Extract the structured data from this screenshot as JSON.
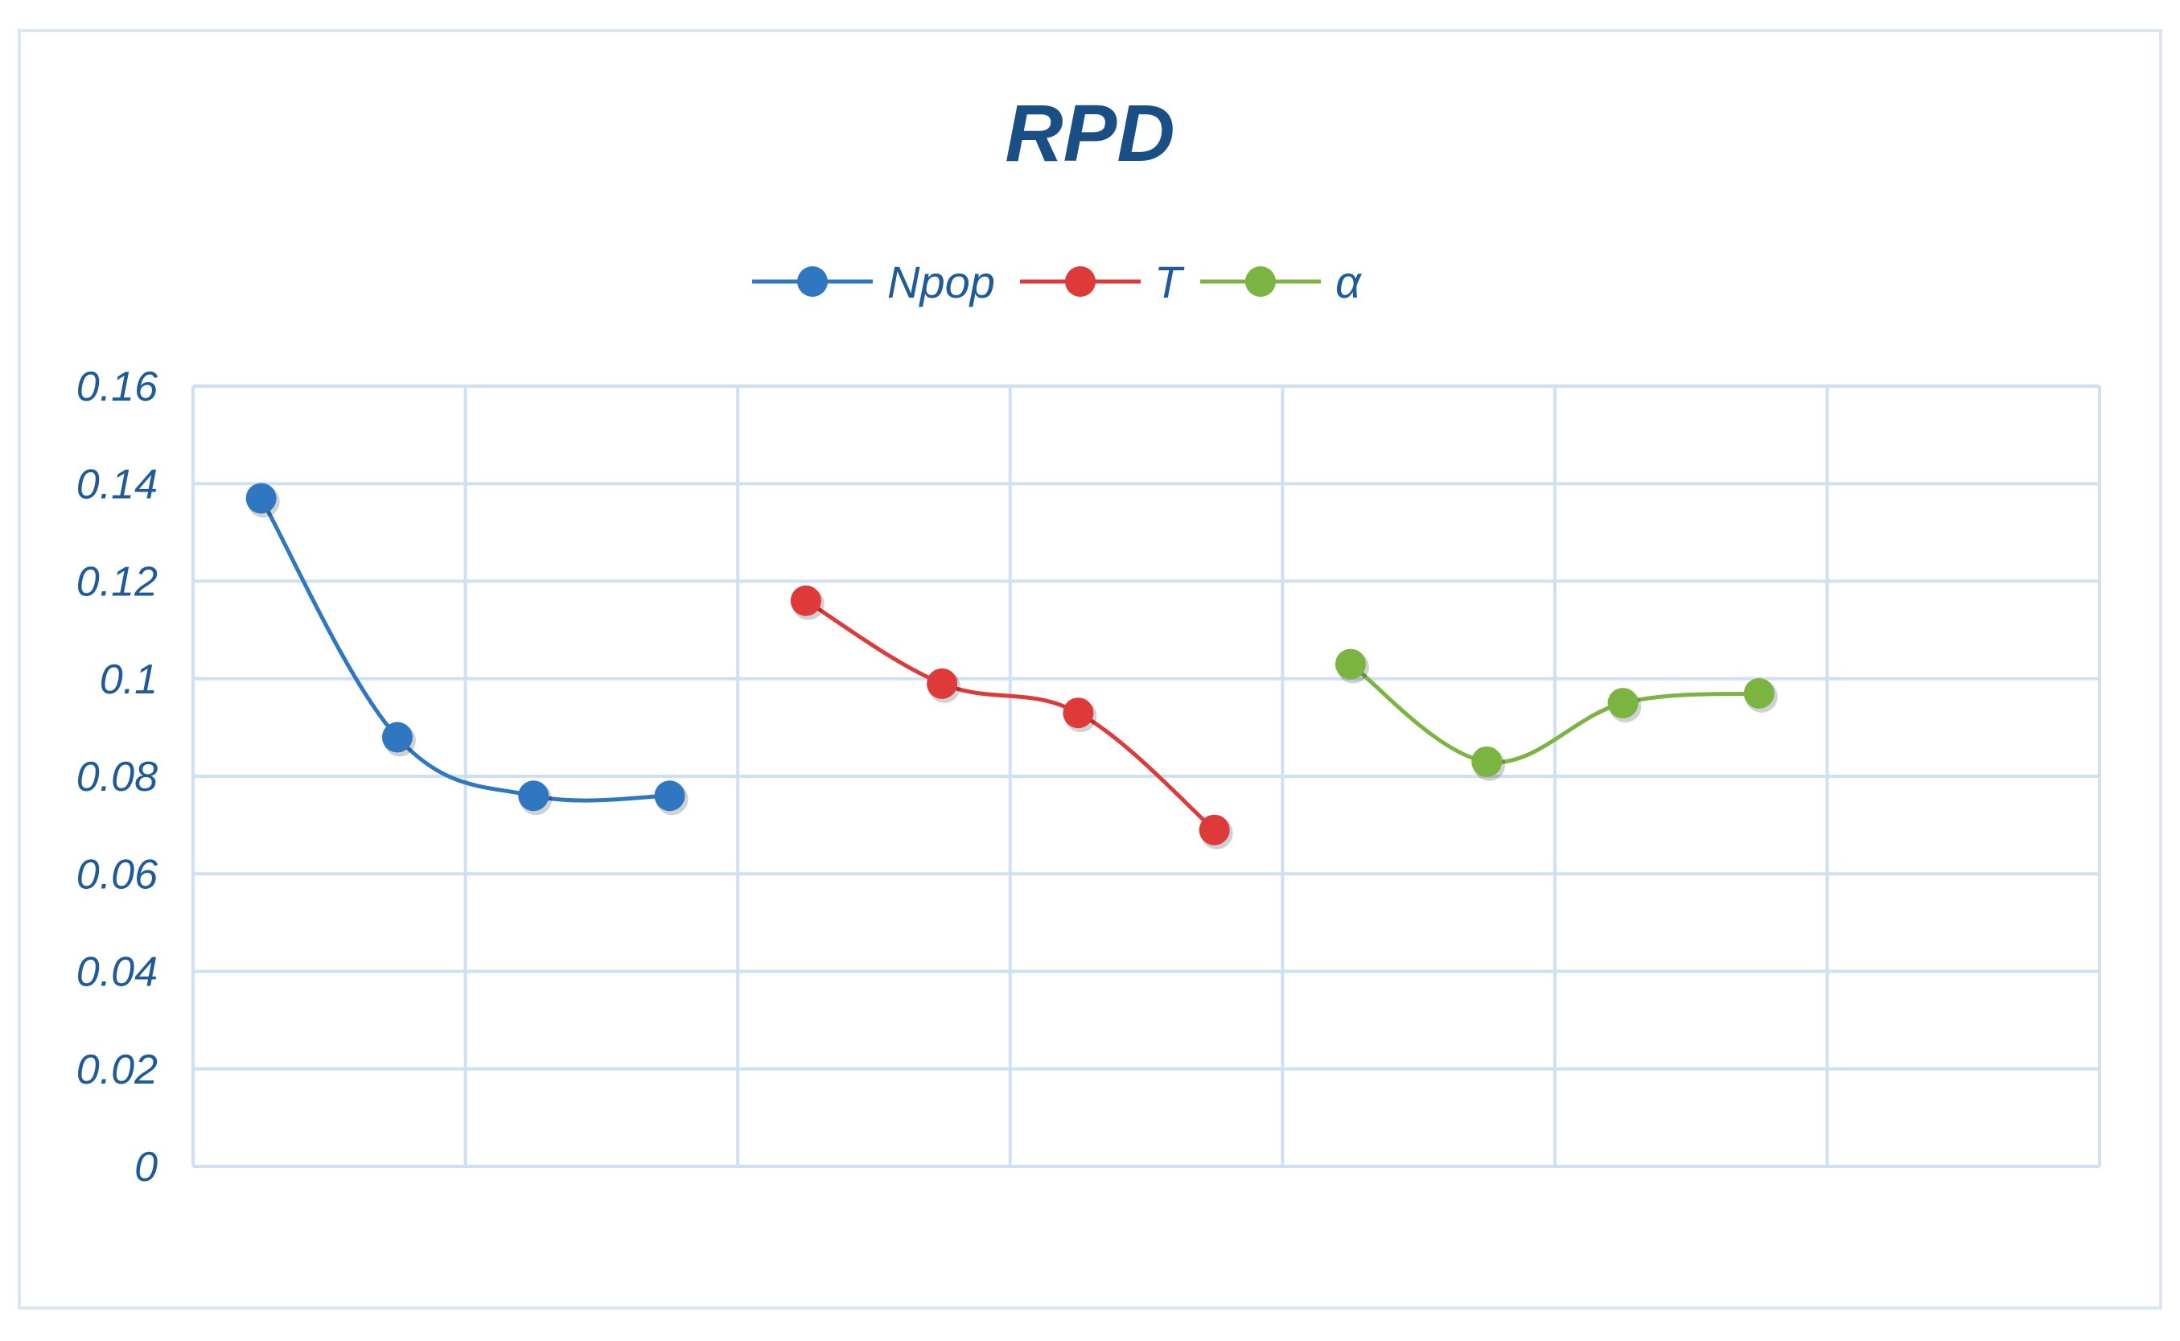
{
  "chart_data": {
    "type": "line",
    "title": "RPD",
    "xlabel": "",
    "ylabel": "",
    "ylim": [
      0,
      0.16
    ],
    "yticks": [
      "0",
      "0.02",
      "0.04",
      "0.06",
      "0.08",
      "0.1",
      "0.12",
      "0.14",
      "0.16"
    ],
    "grid": true,
    "legend_position": "top-center",
    "smooth_lines": true,
    "x": [
      1,
      2,
      3,
      4,
      5,
      6,
      7,
      8,
      9,
      10,
      11,
      12,
      13,
      14
    ],
    "series": [
      {
        "name": "Npop",
        "color": "#2f77c0",
        "x": [
          1,
          2,
          3,
          4
        ],
        "values": [
          0.137,
          0.088,
          0.076,
          0.076
        ]
      },
      {
        "name": "T",
        "color": "#de3a3a",
        "x": [
          5,
          6,
          7,
          8
        ],
        "values": [
          0.116,
          0.099,
          0.093,
          0.069
        ]
      },
      {
        "name": "α",
        "color": "#7bb441",
        "x": [
          9,
          10,
          11,
          12
        ],
        "values": [
          0.103,
          0.083,
          0.095,
          0.097
        ]
      }
    ],
    "colors": {
      "text": "#1f5b96",
      "title": "#1a4f86",
      "grid": "#cfe0f2",
      "frame": "#dbe6f2"
    }
  }
}
